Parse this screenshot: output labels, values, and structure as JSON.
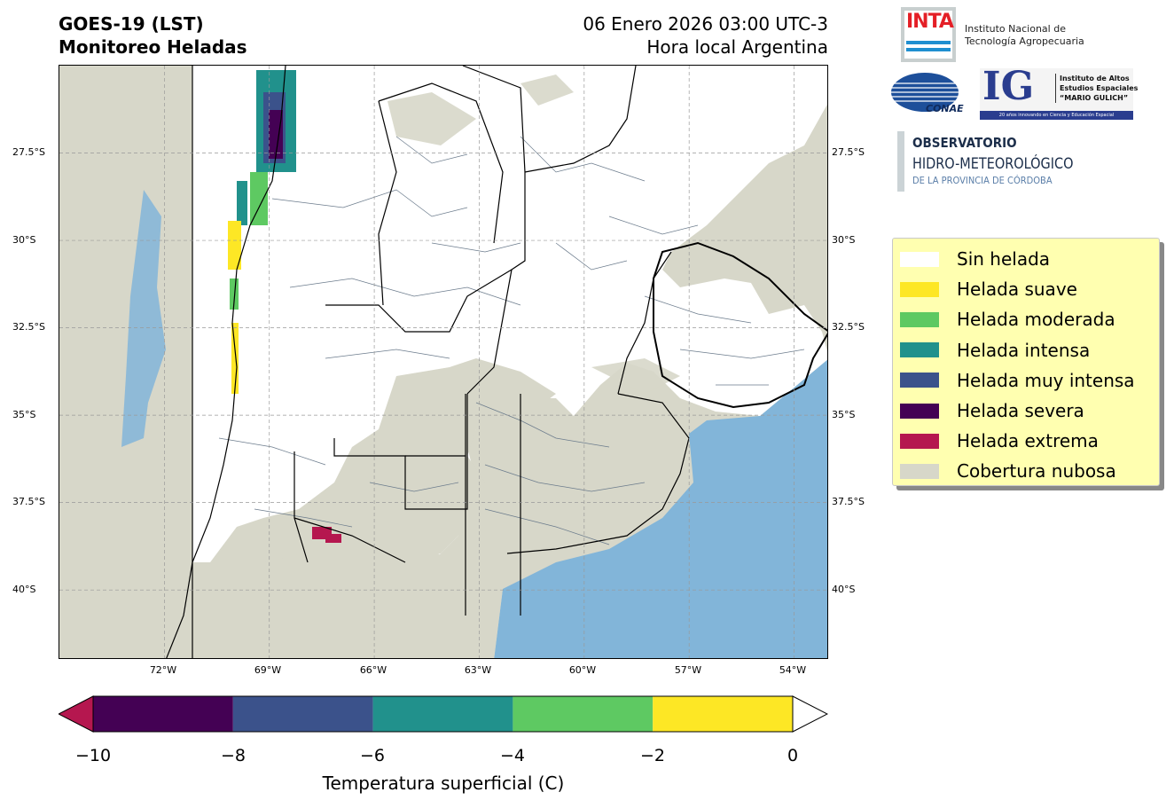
{
  "header": {
    "title_line1": "GOES-19 (LST)",
    "title_line2": "Monitoreo Heladas",
    "date_line": "06 Enero 2026 03:00 UTC-3",
    "local_line": "Hora local Argentina"
  },
  "map": {
    "extent": {
      "lon_min": -75,
      "lon_max": -53,
      "lat_min": -42,
      "lat_max": -25
    },
    "lat_ticks": [
      "27.5°S",
      "30°S",
      "32.5°S",
      "35°S",
      "37.5°S",
      "40°S"
    ],
    "lat_tick_values": [
      -27.5,
      -30,
      -32.5,
      -35,
      -37.5,
      -40
    ],
    "lon_ticks": [
      "72°W",
      "69°W",
      "66°W",
      "63°W",
      "60°W",
      "57°W",
      "54°W"
    ],
    "lon_tick_values": [
      -72,
      -69,
      -66,
      -63,
      -60,
      -57,
      -54
    ],
    "colors": {
      "cloud": "#d7d7c9",
      "ocean": "#82b5d9",
      "land": "#ffffff",
      "province": "#000000",
      "department": "#6b7b8c"
    }
  },
  "legend": {
    "items": [
      {
        "label": "Sin helada",
        "color": "#ffffff"
      },
      {
        "label": "Helada suave",
        "color": "#fde725"
      },
      {
        "label": "Helada moderada",
        "color": "#5ec962"
      },
      {
        "label": "Helada intensa",
        "color": "#21918c"
      },
      {
        "label": "Helada muy intensa",
        "color": "#3b528b"
      },
      {
        "label": "Helada severa",
        "color": "#440154"
      },
      {
        "label": "Helada extrema",
        "color": "#b5174f"
      },
      {
        "label": "Cobertura nubosa",
        "color": "#d7d7c9"
      }
    ]
  },
  "colorbar": {
    "label": "Temperatura superficial (C)",
    "ticks": [
      "−10",
      "−8",
      "−6",
      "−4",
      "−2",
      "0"
    ],
    "tick_values": [
      -10,
      -8,
      -6,
      -4,
      -2,
      0
    ],
    "under_color": "#b5174f",
    "over_color": "#ffffff",
    "segments": [
      {
        "from": -10,
        "to": -8,
        "color": "#440154"
      },
      {
        "from": -8,
        "to": -6,
        "color": "#3b528b"
      },
      {
        "from": -6,
        "to": -4,
        "color": "#21918c"
      },
      {
        "from": -4,
        "to": -2,
        "color": "#5ec962"
      },
      {
        "from": -2,
        "to": 0,
        "color": "#fde725"
      }
    ]
  },
  "logos": {
    "inta_word": "INTA",
    "inta_line1": "Instituto Nacional de",
    "inta_line2": "Tecnología Agropecuaria",
    "conae_word": "CONAE",
    "ig_letters": "IG",
    "ig_line1": "Instituto de Altos",
    "ig_line2": "Estudios Espaciales",
    "ig_line3": "“MARIO GULICH”",
    "ig_footer": "20 años innovando en Ciencia y Educación Espacial",
    "obs_line1": "OBSERVATORIO",
    "obs_line2": "HIDRO-METEOROLÓGICO",
    "obs_line3": "DE LA PROVINCIA DE CÓRDOBA"
  }
}
